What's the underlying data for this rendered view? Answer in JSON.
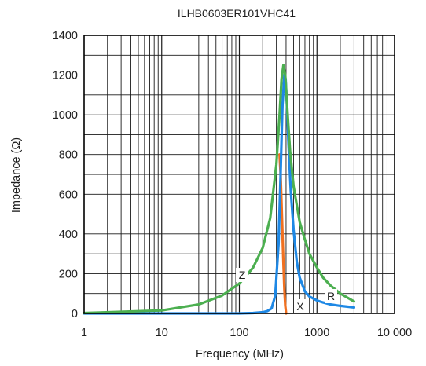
{
  "chart_data": {
    "type": "line",
    "title": "ILHB0603ER101VHC41",
    "xlabel": "Frequency (MHz)",
    "ylabel": "Impedance (Ω)",
    "x_scale": "log",
    "xlim": [
      1,
      10000
    ],
    "ylim": [
      0,
      1400
    ],
    "grid": true,
    "x_tick_labels": [
      "1",
      "10",
      "100",
      "1000",
      "10 000"
    ],
    "y_tick_labels": [
      "0",
      "200",
      "400",
      "600",
      "800",
      "1000",
      "1200",
      "1400"
    ],
    "series": [
      {
        "name": "Z",
        "color": "#4caf50",
        "x": [
          1,
          10,
          30,
          60,
          100,
          150,
          200,
          250,
          300,
          330,
          350,
          370,
          390,
          420,
          450,
          500,
          600,
          700,
          800,
          1000,
          1200,
          1500,
          2000,
          3000
        ],
        "y": [
          2,
          15,
          45,
          90,
          150,
          230,
          330,
          480,
          750,
          1000,
          1180,
          1250,
          1200,
          1000,
          820,
          640,
          460,
          370,
          300,
          230,
          180,
          140,
          100,
          60
        ]
      },
      {
        "name": "R",
        "color": "#1e88e5",
        "x": [
          1,
          100,
          150,
          200,
          230,
          260,
          290,
          320,
          340,
          360,
          380,
          395,
          410,
          430,
          460,
          500,
          550,
          600,
          700,
          800,
          1000,
          1200,
          1500,
          2000,
          3000
        ],
        "y": [
          0,
          0,
          2,
          6,
          12,
          25,
          90,
          350,
          700,
          1050,
          1200,
          1180,
          1050,
          850,
          620,
          420,
          260,
          180,
          110,
          85,
          65,
          55,
          45,
          38,
          30
        ]
      },
      {
        "name": "X",
        "color": "#f07020",
        "x": [
          330,
          340,
          350,
          360,
          370,
          380,
          390,
          400
        ],
        "y": [
          800,
          700,
          550,
          400,
          250,
          120,
          40,
          0
        ]
      }
    ]
  }
}
